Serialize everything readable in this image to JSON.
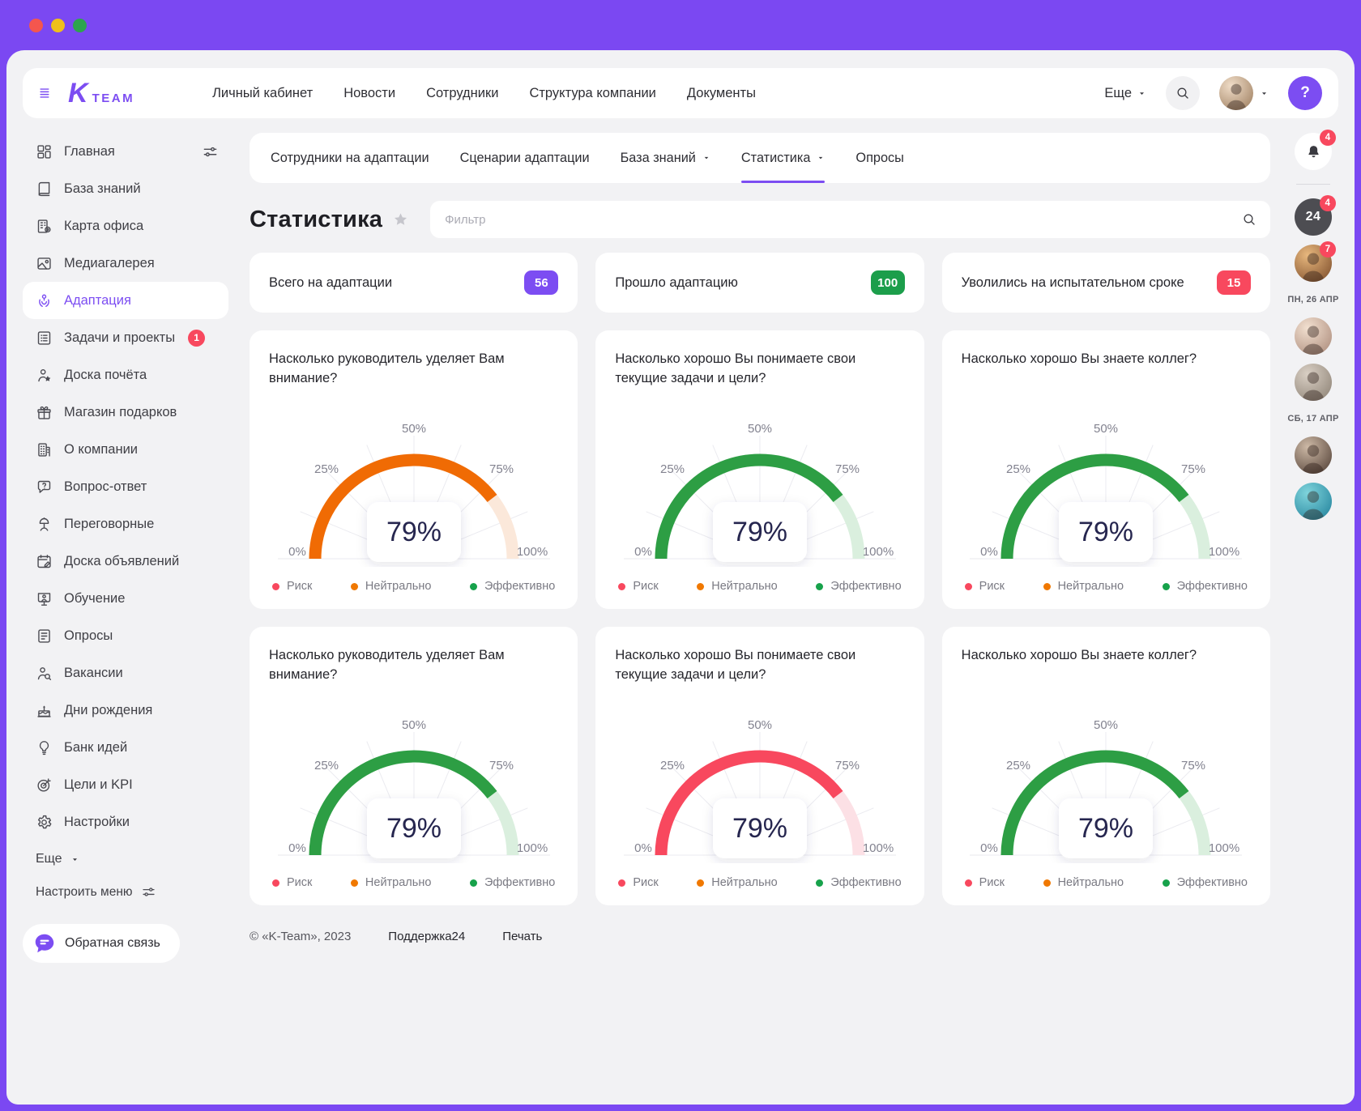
{
  "window": {
    "traffic_lights": [
      {
        "name": "close",
        "color": "#F4564E"
      },
      {
        "name": "minimize",
        "color": "#EFC01B"
      },
      {
        "name": "zoom",
        "color": "#2DA44E"
      }
    ]
  },
  "header": {
    "logo_k": "K",
    "logo_team": "TEAM",
    "nav": [
      "Личный кабинет",
      "Новости",
      "Сотрудники",
      "Структура компании",
      "Документы"
    ],
    "more_label": "Еще",
    "help_label": "?"
  },
  "tabs": [
    {
      "label": "Сотрудники на адаптации",
      "caret": false,
      "active": false
    },
    {
      "label": "Сценарии адаптации",
      "caret": false,
      "active": false
    },
    {
      "label": "База знаний",
      "caret": true,
      "active": false
    },
    {
      "label": "Статистика",
      "caret": true,
      "active": true
    },
    {
      "label": "Опросы",
      "caret": false,
      "active": false
    }
  ],
  "page": {
    "title": "Статистика",
    "filter_placeholder": "Фильтр"
  },
  "stat_cards": [
    {
      "label": "Всего на адаптации",
      "value": "56",
      "color": "#7C4DF2"
    },
    {
      "label": "Прошло адаптацию",
      "value": "100",
      "color": "#1C9E4B"
    },
    {
      "label": "Уволились на испытательном сроке",
      "value": "15",
      "color": "#F8485E"
    }
  ],
  "gauge_ticks": [
    "0%",
    "25%",
    "50%",
    "75%",
    "100%"
  ],
  "gauge_palette": {
    "orange": {
      "arc": "#F06B04",
      "track": "#FBE8DA"
    },
    "green": {
      "arc": "#2D9E44",
      "track": "#DAEFDE"
    },
    "red": {
      "arc": "#F8485E",
      "track": "#FCE0E5"
    }
  },
  "gauges": [
    {
      "title": "Насколько руководитель уделяет Вам внимание?",
      "value": 79,
      "unit": "%",
      "color": "orange"
    },
    {
      "title": "Насколько хорошо Вы понимаете свои текущие задачи и цели?",
      "value": 79,
      "unit": "%",
      "color": "green"
    },
    {
      "title": "Насколько хорошо Вы знаете коллег?",
      "value": 79,
      "unit": "%",
      "color": "green"
    },
    {
      "title": "Насколько руководитель уделяет Вам внимание?",
      "value": 79,
      "unit": "%",
      "color": "green"
    },
    {
      "title": "Насколько хорошо Вы понимаете свои текущие задачи и цели?",
      "value": 79,
      "unit": "%",
      "color": "red"
    },
    {
      "title": "Насколько хорошо Вы знаете коллег?",
      "value": 79,
      "unit": "%",
      "color": "green"
    }
  ],
  "legend": [
    {
      "label": "Риск",
      "color": "#F8485E"
    },
    {
      "label": "Нейтрально",
      "color": "#F07800"
    },
    {
      "label": "Эффективно",
      "color": "#17A24B"
    }
  ],
  "sidebar": {
    "items": [
      {
        "label": "Главная",
        "icon": "dashboard-icon",
        "trailing": "sliders-icon",
        "active": false
      },
      {
        "label": "База знаний",
        "icon": "book-icon",
        "active": false
      },
      {
        "label": "Карта офиса",
        "icon": "office-map-icon",
        "active": false
      },
      {
        "label": "Медиагалерея",
        "icon": "media-gallery-icon",
        "active": false
      },
      {
        "label": "Адаптация",
        "icon": "adaptation-icon",
        "active": true
      },
      {
        "label": "Задачи и проекты",
        "icon": "tasks-icon",
        "badge": "1",
        "active": false
      },
      {
        "label": "Доска почёта",
        "icon": "honor-board-icon",
        "active": false
      },
      {
        "label": "Магазин подарков",
        "icon": "gift-shop-icon",
        "active": false
      },
      {
        "label": "О компании",
        "icon": "company-icon",
        "active": false
      },
      {
        "label": "Вопрос-ответ",
        "icon": "qa-icon",
        "active": false
      },
      {
        "label": "Переговорные",
        "icon": "meeting-rooms-icon",
        "active": false
      },
      {
        "label": "Доска объявлений",
        "icon": "announcements-icon",
        "active": false
      },
      {
        "label": "Обучение",
        "icon": "learning-icon",
        "active": false
      },
      {
        "label": "Опросы",
        "icon": "surveys-icon",
        "active": false
      },
      {
        "label": "Вакансии",
        "icon": "vacancies-icon",
        "active": false
      },
      {
        "label": "Дни рождения",
        "icon": "birthdays-icon",
        "active": false
      },
      {
        "label": "Банк идей",
        "icon": "idea-bank-icon",
        "active": false
      },
      {
        "label": "Цели и KPI",
        "icon": "kpi-icon",
        "active": false
      },
      {
        "label": "Настройки",
        "icon": "settings-icon",
        "active": false
      }
    ],
    "more_label": "Еще",
    "customize_label": "Настроить меню",
    "feedback_label": "Обратная связь"
  },
  "right_rail": [
    {
      "type": "bell",
      "icon": "bell-icon",
      "badge": "4"
    },
    {
      "type": "divider"
    },
    {
      "type": "calendar",
      "day": "24",
      "badge": "4"
    },
    {
      "type": "avatar",
      "badge": "7"
    },
    {
      "type": "date",
      "label": "ПН, 26 АПР"
    },
    {
      "type": "avatar"
    },
    {
      "type": "avatar"
    },
    {
      "type": "date",
      "label": "СБ, 17 АПР"
    },
    {
      "type": "avatar"
    },
    {
      "type": "avatar"
    }
  ],
  "footer": {
    "copyright": "© «K-Team», 2023",
    "support": "Поддержка24",
    "print": "Печать"
  }
}
